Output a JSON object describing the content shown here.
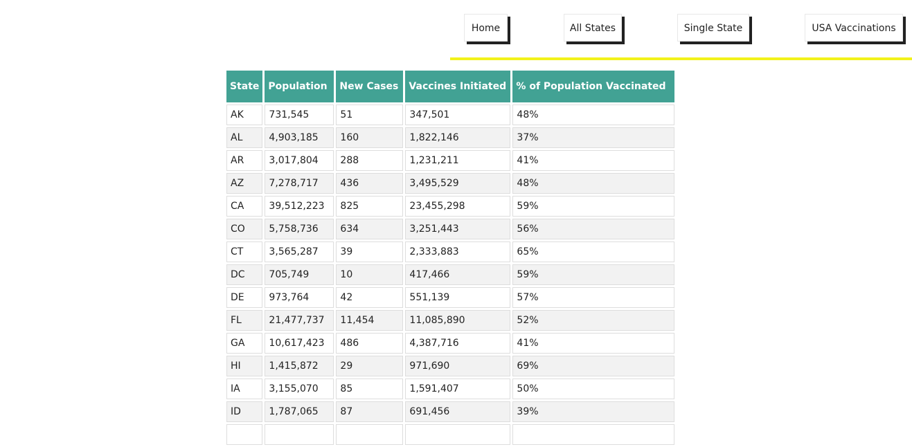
{
  "nav": {
    "home_label": "Home",
    "all_states_label": "All States",
    "single_state_label": "Single State",
    "usa_vaccinations_label": "USA Vaccinations"
  },
  "table": {
    "headers": [
      "State",
      "Population",
      "New Cases",
      "Vaccines Initiated",
      "% of Population Vaccinated"
    ],
    "rows": [
      [
        "AK",
        "731,545",
        "51",
        "347,501",
        "48%"
      ],
      [
        "AL",
        "4,903,185",
        "160",
        "1,822,146",
        "37%"
      ],
      [
        "AR",
        "3,017,804",
        "288",
        "1,231,211",
        "41%"
      ],
      [
        "AZ",
        "7,278,717",
        "436",
        "3,495,529",
        "48%"
      ],
      [
        "CA",
        "39,512,223",
        "825",
        "23,455,298",
        "59%"
      ],
      [
        "CO",
        "5,758,736",
        "634",
        "3,251,443",
        "56%"
      ],
      [
        "CT",
        "3,565,287",
        "39",
        "2,333,883",
        "65%"
      ],
      [
        "DC",
        "705,749",
        "10",
        "417,466",
        "59%"
      ],
      [
        "DE",
        "973,764",
        "42",
        "551,139",
        "57%"
      ],
      [
        "FL",
        "21,477,737",
        "11,454",
        "11,085,890",
        "52%"
      ],
      [
        "GA",
        "10,617,423",
        "486",
        "4,387,716",
        "41%"
      ],
      [
        "HI",
        "1,415,872",
        "29",
        "971,690",
        "69%"
      ],
      [
        "IA",
        "3,155,070",
        "85",
        "1,591,407",
        "50%"
      ],
      [
        "ID",
        "1,787,065",
        "87",
        "691,456",
        "39%"
      ],
      [
        "",
        "",
        "",
        "",
        ""
      ]
    ]
  }
}
